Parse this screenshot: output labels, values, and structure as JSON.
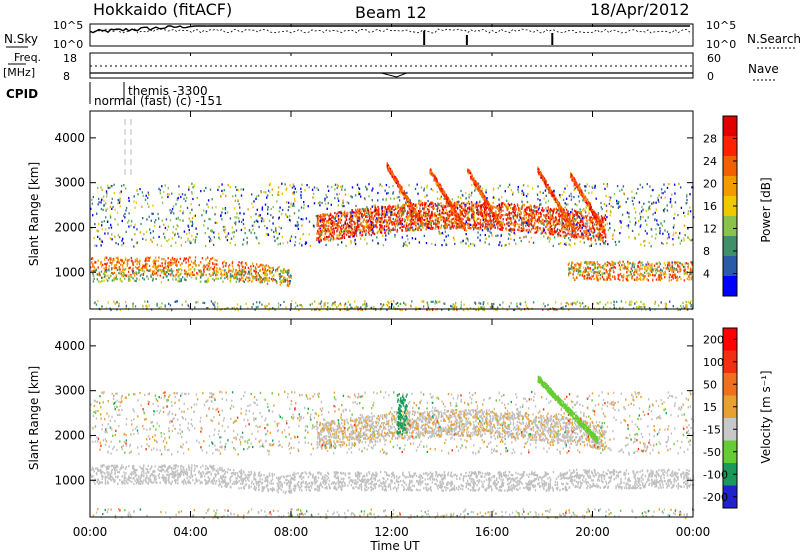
{
  "header": {
    "left_title": "Hokkaido (fitACF)",
    "center_title": "Beam 12",
    "right_title": "18/Apr/2012"
  },
  "summary_panels": {
    "nsky_label": "N.Sky",
    "nsky_ticks": [
      "10^5",
      "10^0"
    ],
    "nsearch_label": "N.Search",
    "nsearch_ticks": [
      "10^5",
      "10^0"
    ],
    "freq_label_1": "Freq.",
    "freq_label_2": "[MHz]",
    "freq_ticks": [
      "18",
      "8"
    ],
    "nave_label": "Nave",
    "nave_ticks": [
      "60",
      "0"
    ],
    "cpid_label": "CPID",
    "cpid_text_lower": "normal (fast) (c) -151",
    "cpid_text_upper": "themis -3300"
  },
  "colors": {
    "power_scale": [
      "#0000ff",
      "#2a5aa8",
      "#3e8f6a",
      "#8bc34a",
      "#f0c800",
      "#f29a00",
      "#f26100",
      "#ff2200",
      "#e00000"
    ],
    "velocity_scale": [
      "#2222cc",
      "#1a9a5a",
      "#66cc33",
      "#c8c8c8",
      "#e8a030",
      "#f07020",
      "#f03010",
      "#ff0000"
    ],
    "ground_scatter": "#c0c0c0"
  },
  "chart_data": [
    {
      "type": "heatmap",
      "title": "Power",
      "ylabel": "Slant Range [km]",
      "ylim": [
        180,
        4600
      ],
      "yticks": [
        "1000",
        "2000",
        "3000",
        "4000"
      ],
      "colorbar_label": "Power [dB]",
      "colorbar_ticks": [
        "4",
        "8",
        "12",
        "16",
        "20",
        "24",
        "28"
      ],
      "clim": [
        0,
        30
      ]
    },
    {
      "type": "heatmap",
      "title": "Velocity",
      "ylabel": "Slant Range [km]",
      "ylim": [
        180,
        4600
      ],
      "yticks": [
        "1000",
        "2000",
        "3000",
        "4000"
      ],
      "colorbar_label": "Velocity [m s⁻¹]",
      "colorbar_ticks": [
        "200",
        "100",
        "50",
        "15",
        "-15",
        "-50",
        "-100",
        "-200"
      ],
      "xlabel": "Time UT",
      "xticks": [
        "00:00",
        "04:00",
        "08:00",
        "12:00",
        "16:00",
        "20:00",
        "00:00"
      ],
      "xlim_hours": [
        0,
        24
      ]
    }
  ]
}
